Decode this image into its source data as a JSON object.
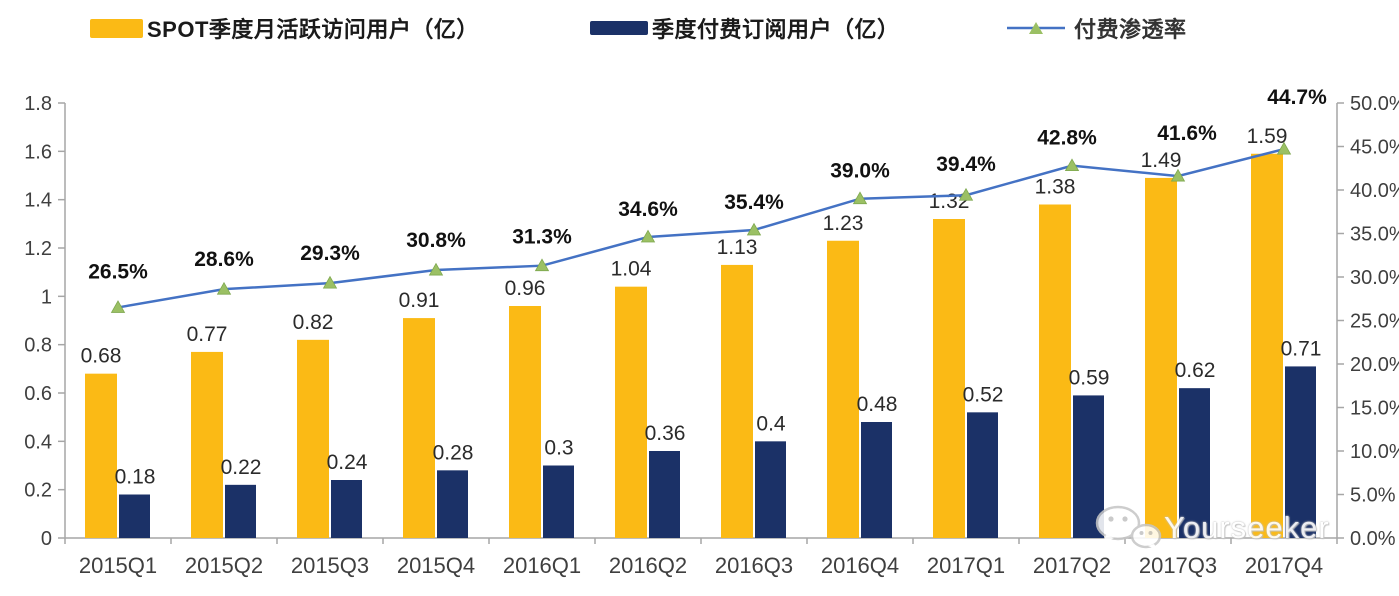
{
  "watermark": {
    "text": "Yourseeker",
    "icon": "wechat-icon"
  },
  "chart_data": {
    "type": "bar+line",
    "categories": [
      "2015Q1",
      "2015Q2",
      "2015Q3",
      "2015Q4",
      "2016Q1",
      "2016Q2",
      "2016Q3",
      "2016Q4",
      "2017Q1",
      "2017Q2",
      "2017Q3",
      "2017Q4"
    ],
    "series": [
      {
        "name": "SPOT季度月活跃访问用户（亿）",
        "type": "bar",
        "axis": "left",
        "color": "#FBBA15",
        "values": [
          0.68,
          0.77,
          0.82,
          0.91,
          0.96,
          1.04,
          1.13,
          1.23,
          1.32,
          1.38,
          1.49,
          1.59
        ],
        "labels": [
          "0.68",
          "0.77",
          "0.82",
          "0.91",
          "0.96",
          "1.04",
          "1.13",
          "1.23",
          "1.32",
          "1.38",
          "1.49",
          "1.59"
        ]
      },
      {
        "name": "季度付费订阅用户（亿）",
        "type": "bar",
        "axis": "left",
        "color": "#1B3167",
        "values": [
          0.18,
          0.22,
          0.24,
          0.28,
          0.3,
          0.36,
          0.4,
          0.48,
          0.52,
          0.59,
          0.62,
          0.71
        ],
        "labels": [
          "0.18",
          "0.22",
          "0.24",
          "0.28",
          "0.3",
          "0.36",
          "0.4",
          "0.48",
          "0.52",
          "0.59",
          "0.62",
          "0.71"
        ]
      },
      {
        "name": "付费渗透率",
        "type": "line",
        "axis": "right",
        "color": "#4472C4",
        "marker": "triangle",
        "marker_color": "#9BC064",
        "values": [
          26.5,
          28.6,
          29.3,
          30.8,
          31.3,
          34.6,
          35.4,
          39.0,
          39.4,
          42.8,
          41.6,
          44.7
        ],
        "labels": [
          "26.5%",
          "28.6%",
          "29.3%",
          "30.8%",
          "31.3%",
          "34.6%",
          "35.4%",
          "39.0%",
          "39.4%",
          "42.8%",
          "41.6%",
          "44.7%"
        ]
      }
    ],
    "left_axis": {
      "min": 0,
      "max": 1.8,
      "step": 0.2,
      "ticks": [
        "1.8",
        "1.6",
        "1.4",
        "1.2",
        "1",
        "0.8",
        "0.6",
        "0.4",
        "0.2",
        "0"
      ]
    },
    "right_axis": {
      "min": 0,
      "max": 50,
      "step": 5,
      "ticks": [
        "50.0%",
        "45.0%",
        "40.0%",
        "35.0%",
        "30.0%",
        "25.0%",
        "20.0%",
        "15.0%",
        "10.0%",
        "5.0%",
        "0.0%"
      ]
    },
    "grid": false,
    "legend_position": "top",
    "axis_color": "#A6A6A6"
  }
}
